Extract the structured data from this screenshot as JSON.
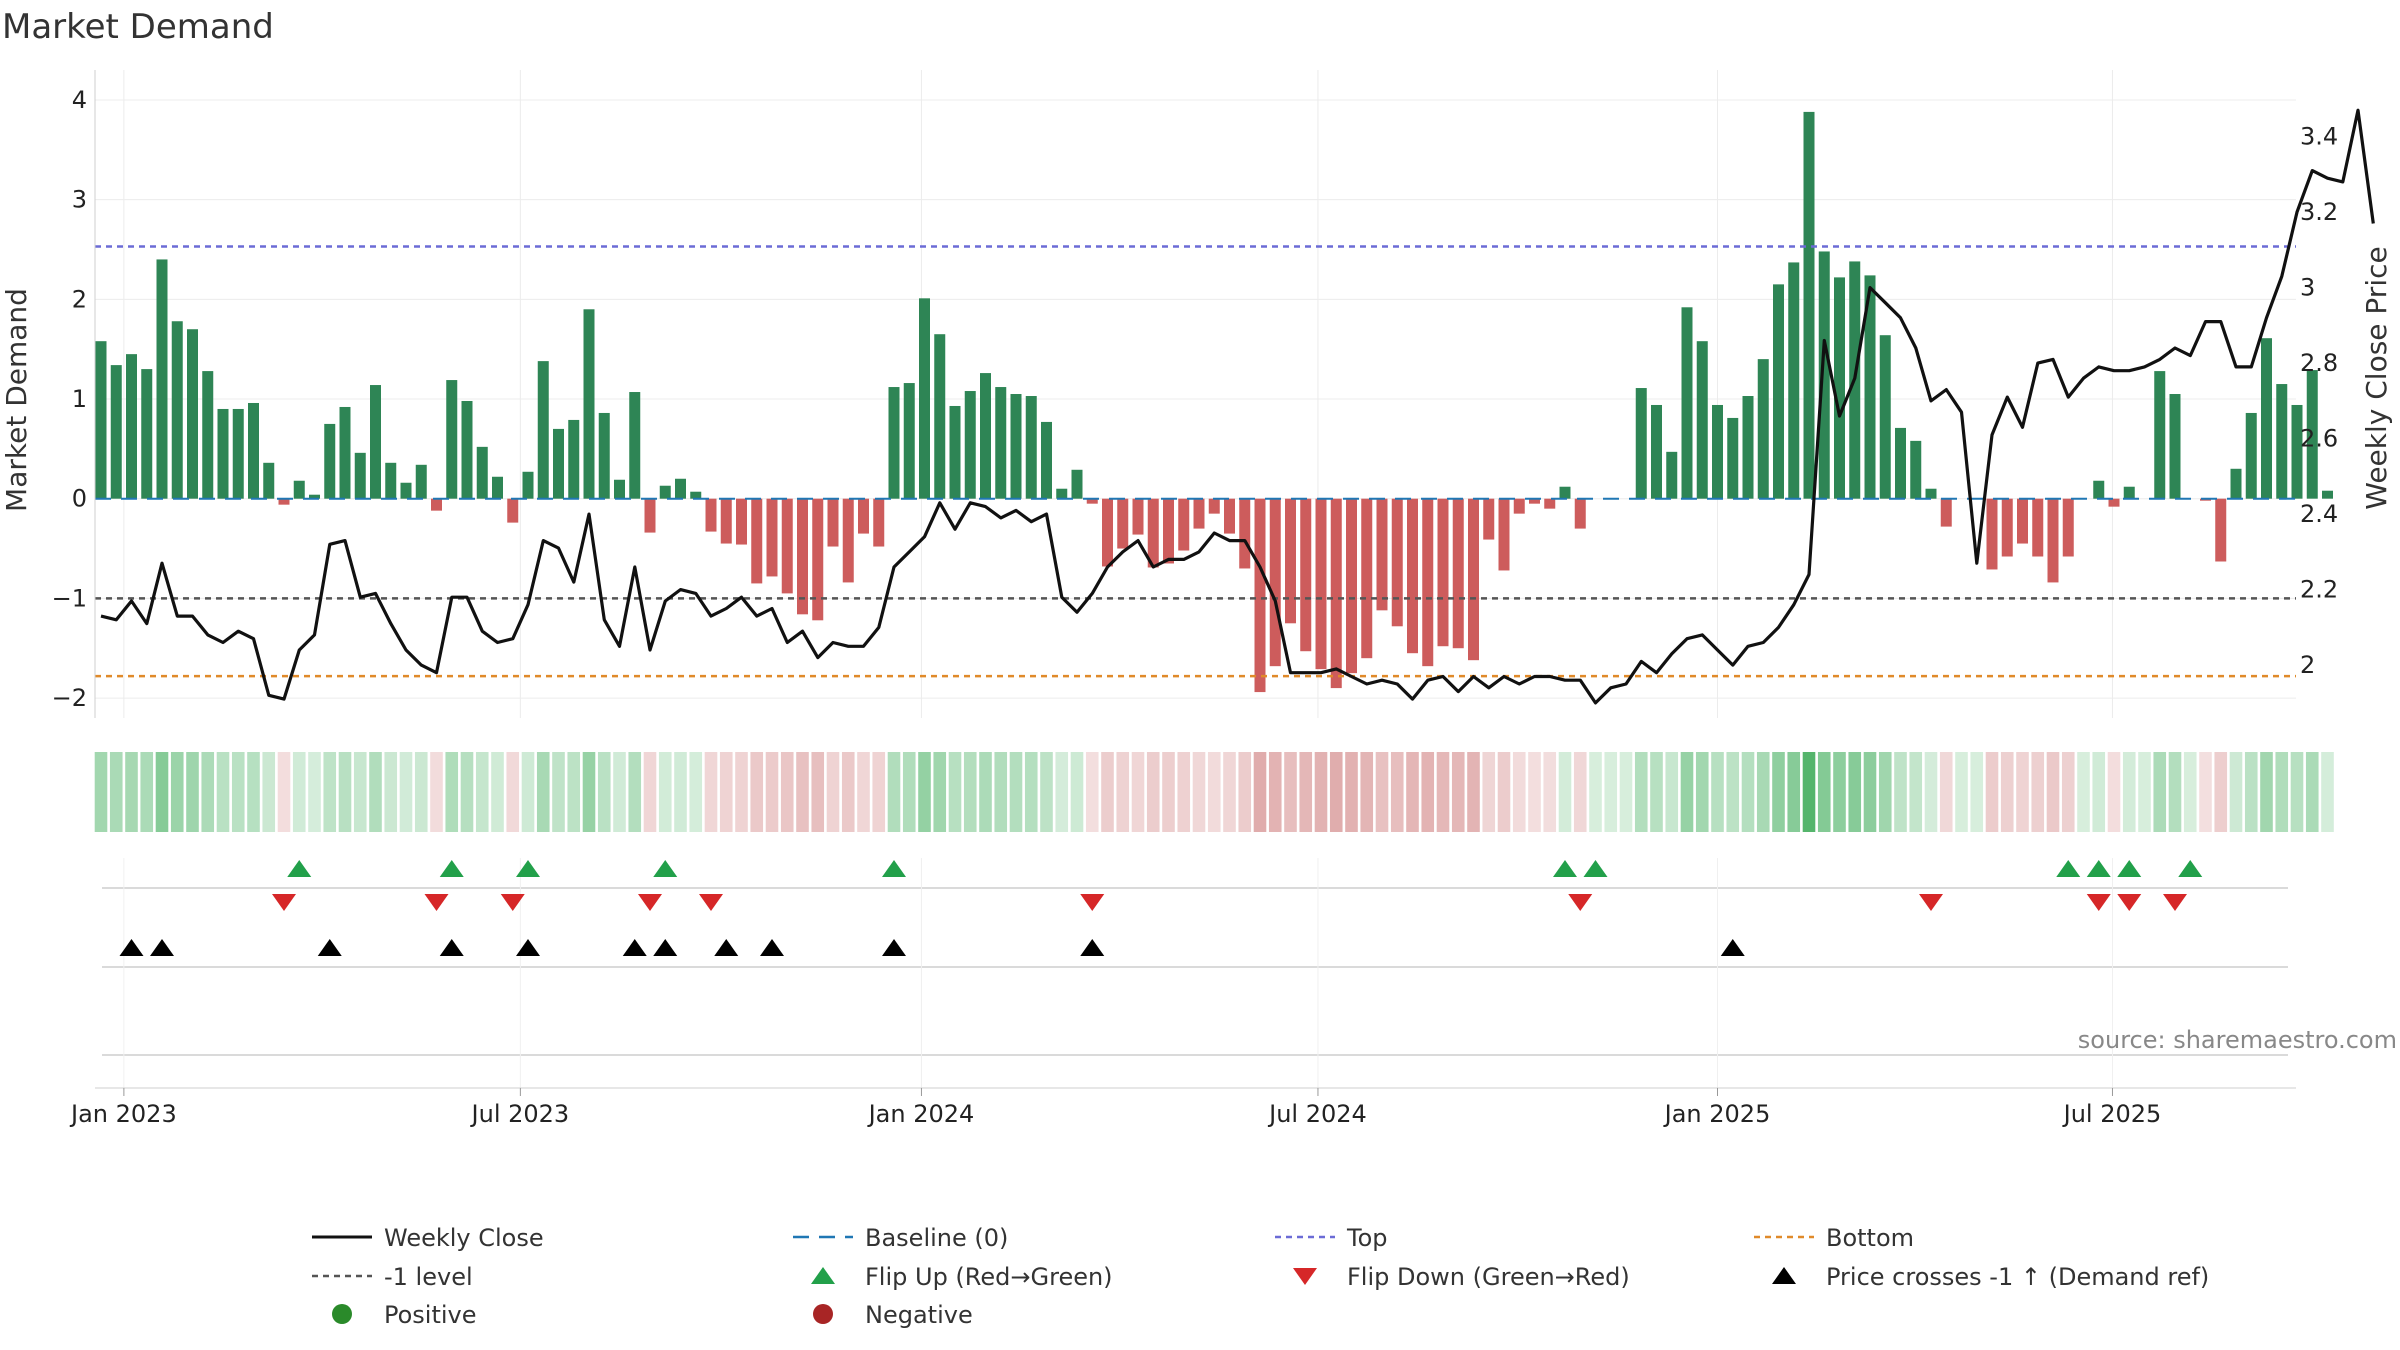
{
  "chart_data": {
    "type": "bar+line",
    "title": "Market Demand",
    "ylabel_left": "Market Demand",
    "ylabel_right": "Weekly Close Price",
    "source": "source: sharemaestro.com",
    "x_ticks": [
      {
        "label": "Jan 2023",
        "i": 1.5
      },
      {
        "label": "Jul 2023",
        "i": 27.5
      },
      {
        "label": "Jan 2024",
        "i": 53.8
      },
      {
        "label": "Jul 2024",
        "i": 79.8
      },
      {
        "label": "Jan 2025",
        "i": 106.0
      },
      {
        "label": "Jul 2025",
        "i": 131.9
      }
    ],
    "ylim_left": [
      -2.2,
      4.2
    ],
    "yticks_left": [
      -2,
      -1,
      0,
      1,
      2,
      3,
      4
    ],
    "ytick_labels_left": [
      "−2",
      "−1",
      "0",
      "1",
      "2",
      "3",
      "4"
    ],
    "ylim_right": [
      1.86,
      3.55
    ],
    "yticks_right": [
      2.0,
      2.2,
      2.4,
      2.6,
      2.8,
      3.0,
      3.2,
      3.4
    ],
    "ytick_labels_right": [
      "2",
      "2.2",
      "2.4",
      "2.6",
      "2.8",
      "3",
      "3.2",
      "3.4"
    ],
    "reference_lines": {
      "top": 2.53,
      "bottom": -1.78,
      "minus_one": -1.0,
      "baseline": 0
    },
    "demand": [
      1.58,
      1.34,
      1.45,
      1.3,
      2.4,
      1.78,
      1.7,
      1.28,
      0.9,
      0.9,
      0.96,
      0.36,
      -0.06,
      0.18,
      0.04,
      0.75,
      0.92,
      0.46,
      1.14,
      0.36,
      0.16,
      0.34,
      -0.12,
      1.19,
      0.98,
      0.52,
      0.22,
      -0.24,
      0.27,
      1.38,
      0.7,
      0.79,
      1.9,
      0.86,
      0.19,
      1.07,
      -0.34,
      0.13,
      0.2,
      0.07,
      -0.33,
      -0.45,
      -0.46,
      -0.85,
      -0.78,
      -0.95,
      -1.16,
      -1.22,
      -0.48,
      -0.84,
      -0.35,
      -0.48,
      1.12,
      1.16,
      2.01,
      1.65,
      0.93,
      1.08,
      1.26,
      1.12,
      1.05,
      1.03,
      0.77,
      0.1,
      0.29,
      -0.05,
      -0.68,
      -0.5,
      -0.36,
      -0.69,
      -0.65,
      -0.52,
      -0.3,
      -0.15,
      -0.35,
      -0.7,
      -1.94,
      -1.68,
      -1.25,
      -1.53,
      -1.71,
      -1.9,
      -1.75,
      -1.6,
      -1.12,
      -1.28,
      -1.55,
      -1.68,
      -1.48,
      -1.5,
      -1.62,
      -0.41,
      -0.72,
      -0.15,
      -0.05,
      -0.1,
      0.12,
      -0.3,
      0,
      0,
      0,
      1.11,
      0.94,
      0.47,
      1.92,
      1.58,
      0.94,
      0.81,
      1.03,
      1.4,
      2.15,
      2.37,
      3.88,
      2.48,
      2.22,
      2.38,
      2.24,
      1.64,
      0.71,
      0.58,
      0.1,
      -0.28,
      0,
      0,
      -0.71,
      -0.58,
      -0.45,
      -0.58,
      -0.84,
      -0.58,
      0,
      0.18,
      -0.08,
      0.12,
      0,
      1.28,
      1.05,
      0,
      -0.02,
      -0.63,
      0.3,
      0.86,
      1.61,
      1.15,
      0.94,
      1.29,
      0.08
    ],
    "price": [
      2.13,
      2.12,
      2.17,
      2.11,
      2.27,
      2.13,
      2.13,
      2.08,
      2.06,
      2.09,
      2.07,
      1.92,
      1.91,
      2.04,
      2.08,
      2.32,
      2.33,
      2.18,
      2.19,
      2.11,
      2.04,
      2.0,
      1.98,
      2.18,
      2.18,
      2.09,
      2.06,
      2.07,
      2.16,
      2.33,
      2.31,
      2.22,
      2.4,
      2.12,
      2.05,
      2.26,
      2.04,
      2.17,
      2.2,
      2.19,
      2.13,
      2.15,
      2.18,
      2.13,
      2.15,
      2.06,
      2.09,
      2.02,
      2.06,
      2.05,
      2.05,
      2.1,
      2.26,
      2.3,
      2.34,
      2.43,
      2.36,
      2.43,
      2.42,
      2.39,
      2.41,
      2.38,
      2.4,
      2.18,
      2.14,
      2.19,
      2.26,
      2.3,
      2.33,
      2.26,
      2.28,
      2.28,
      2.3,
      2.35,
      2.33,
      2.33,
      2.26,
      2.17,
      1.98,
      1.98,
      1.98,
      1.99,
      1.97,
      1.95,
      1.96,
      1.95,
      1.91,
      1.96,
      1.97,
      1.93,
      1.97,
      1.94,
      1.97,
      1.95,
      1.97,
      1.97,
      1.96,
      1.96,
      1.9,
      1.94,
      1.95,
      2.01,
      1.98,
      2.03,
      2.07,
      2.08,
      2.04,
      2.0,
      2.05,
      2.06,
      2.1,
      2.16,
      2.24,
      2.86,
      2.66,
      2.76,
      3.0,
      2.96,
      2.92,
      2.84,
      2.7,
      2.73,
      2.67,
      2.27,
      2.61,
      2.71,
      2.63,
      2.8,
      2.81,
      2.71,
      2.76,
      2.79,
      2.78,
      2.78,
      2.79,
      2.81,
      2.84,
      2.82,
      2.91,
      2.91,
      2.79,
      2.79,
      2.92,
      3.03,
      3.2,
      3.31,
      3.29,
      3.28,
      3.47,
      3.17
    ],
    "flip_up_i": [
      13,
      23,
      28,
      37,
      52,
      96,
      98,
      129,
      131,
      133,
      137
    ],
    "flip_down_i": [
      12,
      22,
      27,
      36,
      40,
      65,
      97,
      120,
      131,
      133,
      136
    ],
    "cross_i": [
      2,
      4,
      15,
      23,
      28,
      35,
      37,
      41,
      44,
      52,
      65,
      107
    ],
    "heat_max": 3.9,
    "legend": [
      {
        "label": "Weekly Close",
        "kind": "line",
        "color": "#111111"
      },
      {
        "label": "Baseline (0)",
        "kind": "dashline",
        "color": "#1f77b4"
      },
      {
        "label": "Top",
        "kind": "dotline",
        "color": "#6b6bd6"
      },
      {
        "label": "Bottom",
        "kind": "dotline",
        "color": "#e08a2a"
      },
      {
        "label": "-1 level",
        "kind": "dotline",
        "color": "#555555"
      },
      {
        "label": "Flip Up (Red→Green)",
        "kind": "tri-up",
        "color": "#22a04a"
      },
      {
        "label": "Flip Down (Green→Red)",
        "kind": "tri-down",
        "color": "#d62728"
      },
      {
        "label": "Price crosses -1 ↑ (Demand ref)",
        "kind": "tri-up",
        "color": "#000000"
      },
      {
        "label": "Positive",
        "kind": "dot",
        "color": "#2a8a2a"
      },
      {
        "label": "Negative",
        "kind": "dot",
        "color": "#a82525"
      }
    ],
    "colors": {
      "bar_pos": "#2e8555",
      "bar_neg": "#cd5c5c",
      "heat_pos": "#36a852",
      "heat_neg": "#c46060",
      "grid": "#ececec"
    }
  }
}
